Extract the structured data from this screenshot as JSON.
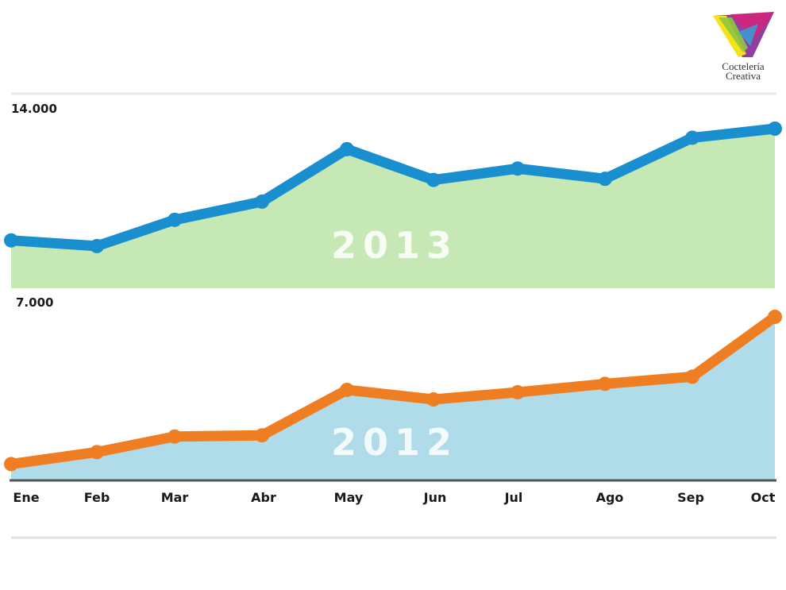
{
  "logo": {
    "line1": "Coctelería",
    "line2": "Creativa"
  },
  "chart_data": [
    {
      "type": "area",
      "name": "2013",
      "y_label": "14.000",
      "color": "#1a8fcf",
      "fill": "#c6e8b4",
      "categories": [
        "Ene",
        "Feb",
        "Mar",
        "Abr",
        "May",
        "Jun",
        "Jul",
        "Ago",
        "Sep",
        "Oct"
      ],
      "values": [
        4200,
        3700,
        6000,
        7600,
        12200,
        9500,
        10500,
        9600,
        13200,
        14000
      ],
      "ylim": [
        0,
        14000
      ]
    },
    {
      "type": "area",
      "name": "2012",
      "y_label": "7.000",
      "color": "#ef7d21",
      "fill": "#b0dbe9",
      "categories": [
        "Ene",
        "Feb",
        "Mar",
        "Abr",
        "May",
        "Jun",
        "Jul",
        "Ago",
        "Sep",
        "Oct"
      ],
      "values": [
        650,
        1150,
        1800,
        1850,
        3750,
        3350,
        3650,
        4000,
        4300,
        6800
      ],
      "ylim": [
        0,
        7000
      ]
    }
  ],
  "x_ticks": [
    "Ene",
    "Feb",
    "Mar",
    "Abr",
    "May",
    "Jun",
    "Jul",
    "Ago",
    "Sep",
    "Oct"
  ]
}
